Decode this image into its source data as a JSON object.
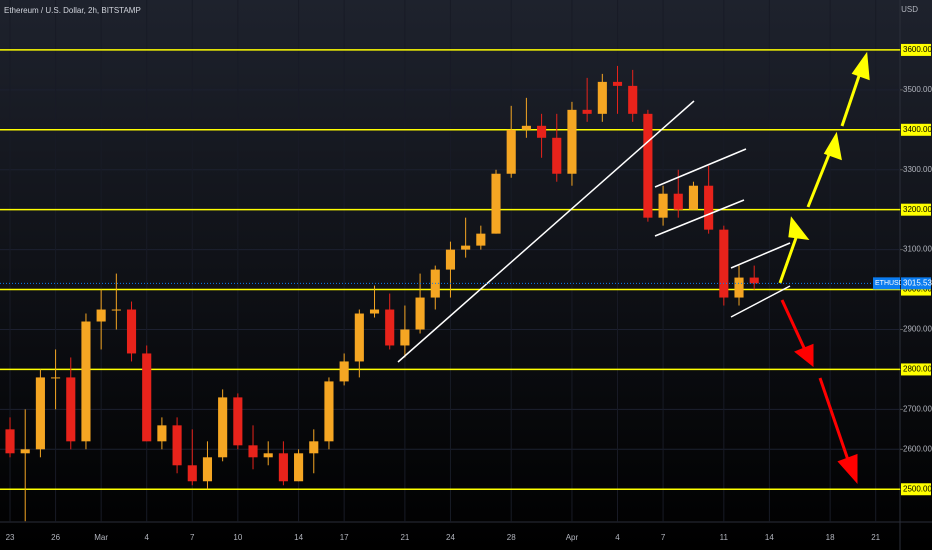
{
  "chart_data": {
    "type": "candlestick",
    "title": "Ethereum / U.S. Dollar, 2h, BITSTAMP",
    "currency": "USD",
    "symbol": "ETHUSD",
    "last_price": 3015.53,
    "up_color": "#f5a623",
    "down_color": "#e8231b",
    "level_color": "#ffff00",
    "levels": [
      3600,
      3400,
      3200,
      3000,
      2800,
      2500
    ],
    "x": [
      0,
      1,
      2,
      3,
      4,
      5,
      6,
      7,
      8,
      9,
      10,
      11,
      12,
      13,
      14,
      15,
      16,
      17,
      18,
      19,
      20,
      21,
      22,
      23,
      24,
      25,
      26,
      27,
      28,
      29,
      30,
      31,
      32,
      33,
      34,
      35,
      36,
      37,
      38,
      39,
      40,
      41,
      42,
      43,
      44,
      45,
      46,
      47,
      48,
      49
    ],
    "open": [
      2650,
      2590,
      2600,
      2780,
      2780,
      2620,
      2920,
      2950,
      2950,
      2840,
      2620,
      2660,
      2560,
      2520,
      2580,
      2730,
      2610,
      2580,
      2590,
      2520,
      2590,
      2620,
      2770,
      2820,
      2940,
      2950,
      2860,
      2900,
      2980,
      3050,
      3100,
      3110,
      3140,
      3290,
      3400,
      3410,
      3380,
      3290,
      3450,
      3440,
      3520,
      3510,
      3440,
      3180,
      3240,
      3200,
      3260,
      3150,
      2980,
      3030
    ],
    "high": [
      2680,
      2700,
      2800,
      2850,
      2830,
      2940,
      3000,
      3040,
      2970,
      2860,
      2680,
      2680,
      2650,
      2620,
      2750,
      2740,
      2660,
      2620,
      2620,
      2600,
      2650,
      2780,
      2840,
      2950,
      3010,
      2990,
      2960,
      3040,
      3060,
      3120,
      3180,
      3160,
      3300,
      3460,
      3480,
      3440,
      3440,
      3470,
      3530,
      3540,
      3560,
      3550,
      3450,
      3260,
      3300,
      3270,
      3310,
      3160,
      3060,
      3060
    ],
    "low": [
      2580,
      2420,
      2580,
      2700,
      2600,
      2600,
      2850,
      2900,
      2820,
      2620,
      2600,
      2540,
      2510,
      2500,
      2570,
      2600,
      2550,
      2560,
      2510,
      2520,
      2540,
      2600,
      2760,
      2780,
      2930,
      2850,
      2830,
      2890,
      2950,
      2980,
      3080,
      3100,
      3140,
      3280,
      3380,
      3330,
      3270,
      3260,
      3420,
      3420,
      3440,
      3420,
      3170,
      3160,
      3180,
      3200,
      3140,
      2960,
      2960,
      3000
    ],
    "close": [
      2590,
      2600,
      2780,
      2780,
      2620,
      2920,
      2950,
      2950,
      2840,
      2620,
      2660,
      2560,
      2520,
      2580,
      2730,
      2610,
      2580,
      2590,
      2520,
      2590,
      2620,
      2770,
      2820,
      2940,
      2950,
      2860,
      2900,
      2980,
      3050,
      3100,
      3110,
      3140,
      3290,
      3400,
      3410,
      3380,
      3290,
      3450,
      3440,
      3520,
      3510,
      3440,
      3180,
      3240,
      3200,
      3260,
      3150,
      2980,
      3030,
      3015.53
    ],
    "xlim": [
      -0.66,
      58.6
    ],
    "xticks": [
      {
        "value": 0,
        "label": "23"
      },
      {
        "value": 3,
        "label": "26"
      },
      {
        "value": 6,
        "label": "Mar"
      },
      {
        "value": 9,
        "label": "4"
      },
      {
        "value": 12,
        "label": "7"
      },
      {
        "value": 15,
        "label": "10"
      },
      {
        "value": 19,
        "label": "14"
      },
      {
        "value": 22,
        "label": "17"
      },
      {
        "value": 26,
        "label": "21"
      },
      {
        "value": 29,
        "label": "24"
      },
      {
        "value": 33,
        "label": "28"
      },
      {
        "value": 37,
        "label": "Apr"
      },
      {
        "value": 40,
        "label": "4"
      },
      {
        "value": 43,
        "label": "7"
      },
      {
        "value": 47,
        "label": "11"
      },
      {
        "value": 50,
        "label": "14"
      },
      {
        "value": 54,
        "label": "18"
      },
      {
        "value": 57,
        "label": "21"
      }
    ],
    "ylim": [
      2418,
      3725
    ],
    "yticks": [
      {
        "value": 2500,
        "label": "2500.00"
      },
      {
        "value": 2600,
        "label": "2600.00"
      },
      {
        "value": 2700,
        "label": "2700.00"
      },
      {
        "value": 2800,
        "label": "2800.00"
      },
      {
        "value": 2900,
        "label": "2900.00"
      },
      {
        "value": 3000,
        "label": "3000.00"
      },
      {
        "value": 3100,
        "label": "3100.00"
      },
      {
        "value": 3200,
        "label": "3200.00"
      },
      {
        "value": 3300,
        "label": "3300.00"
      },
      {
        "value": 3400,
        "label": "3400.00"
      },
      {
        "value": 3500,
        "label": "3500.00"
      },
      {
        "value": 3600,
        "label": "3600.00"
      }
    ]
  }
}
